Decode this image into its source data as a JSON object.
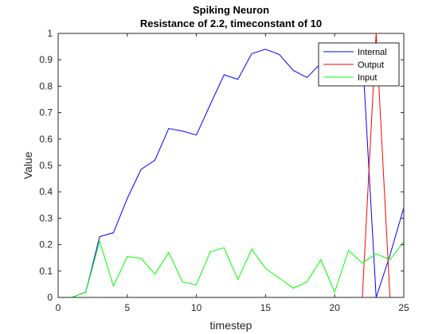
{
  "chart_data": {
    "type": "line",
    "title": "Spiking Neuron",
    "subtitle": "Resistance of 2.2, timeconstant of 10",
    "xlabel": "timestep",
    "ylabel": "Value",
    "xlim": [
      0,
      25
    ],
    "ylim": [
      0,
      1
    ],
    "xticks": [
      0,
      5,
      10,
      15,
      20,
      25
    ],
    "yticks": [
      0,
      0.1,
      0.2,
      0.3,
      0.4,
      0.5,
      0.6,
      0.7,
      0.8,
      0.9,
      1
    ],
    "xtick_labels": [
      "0",
      "5",
      "10",
      "15",
      "20",
      "25"
    ],
    "ytick_labels": [
      "0",
      "0.1",
      "0.2",
      "0.3",
      "0.4",
      "0.5",
      "0.6",
      "0.7",
      "0.8",
      "0.9",
      "1"
    ],
    "grid": false,
    "legend_position": "top-right",
    "series": [
      {
        "name": "Internal",
        "color": "#0000ff",
        "x": [
          1,
          2,
          3,
          4,
          5,
          6,
          7,
          8,
          9,
          10,
          11,
          12,
          13,
          14,
          15,
          16,
          17,
          18,
          19,
          20,
          21,
          22,
          23,
          24,
          25
        ],
        "values": [
          0,
          0.02,
          0.23,
          0.245,
          0.375,
          0.485,
          0.52,
          0.64,
          0.63,
          0.615,
          0.73,
          0.843,
          0.826,
          0.923,
          0.94,
          0.92,
          0.86,
          0.833,
          0.887,
          0.92,
          0.95,
          0.93,
          0,
          0.16,
          0.34
        ]
      },
      {
        "name": "Output",
        "color": "#ff0000",
        "x": [
          1,
          2,
          3,
          4,
          5,
          6,
          7,
          8,
          9,
          10,
          11,
          12,
          13,
          14,
          15,
          16,
          17,
          18,
          19,
          20,
          21,
          22,
          23,
          24,
          25
        ],
        "values": [
          0,
          0,
          0,
          0,
          0,
          0,
          0,
          0,
          0,
          0,
          0,
          0,
          0,
          0,
          0,
          0,
          0,
          0,
          0,
          0,
          0,
          0,
          1,
          0,
          0
        ]
      },
      {
        "name": "Input",
        "color": "#00ff00",
        "x": [
          1,
          2,
          3,
          4,
          5,
          6,
          7,
          8,
          9,
          10,
          11,
          12,
          13,
          14,
          15,
          16,
          17,
          18,
          19,
          20,
          21,
          22,
          23,
          24,
          25
        ],
        "values": [
          0,
          0.02,
          0.213,
          0.043,
          0.155,
          0.148,
          0.088,
          0.17,
          0.058,
          0.048,
          0.173,
          0.188,
          0.068,
          0.183,
          0.11,
          0.073,
          0.035,
          0.058,
          0.143,
          0.02,
          0.178,
          0.13,
          0.165,
          0.143,
          0.21
        ]
      }
    ]
  }
}
